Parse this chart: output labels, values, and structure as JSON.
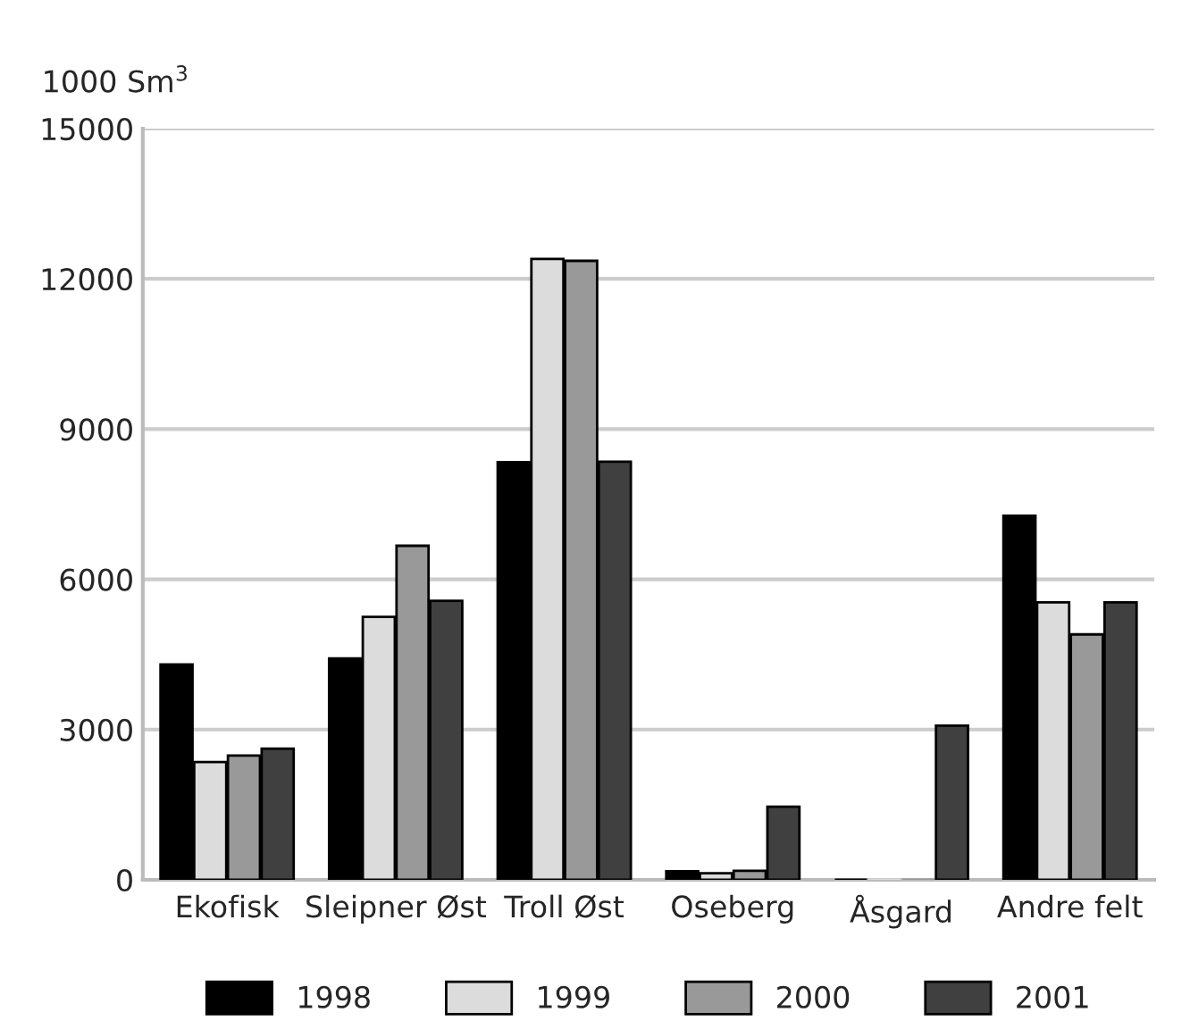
{
  "chart_data": {
    "type": "bar",
    "ylabel": "1000 Sm$^{3}$",
    "categories": [
      "Ekofisk",
      "Sleipner Øst",
      "Troll Øst",
      "Oseberg",
      "Åsgard",
      "Andre felt"
    ],
    "series": [
      {
        "name": "1998",
        "color": "#000000",
        "values": [
          4300,
          4420,
          8340,
          170,
          0,
          7270
        ]
      },
      {
        "name": "1999",
        "color": "#dcdcdc",
        "values": [
          2350,
          5250,
          12400,
          130,
          0,
          5540
        ]
      },
      {
        "name": "2000",
        "color": "#999999",
        "values": [
          2480,
          6670,
          12360,
          180,
          0,
          4900
        ]
      },
      {
        "name": "2001",
        "color": "#404040",
        "values": [
          2620,
          5570,
          8350,
          1460,
          3080,
          5540
        ]
      }
    ],
    "ylim": [
      0,
      15000
    ],
    "yticks": [
      0,
      3000,
      6000,
      9000,
      12000,
      15000
    ],
    "grid": "y",
    "legend": "bottom"
  }
}
